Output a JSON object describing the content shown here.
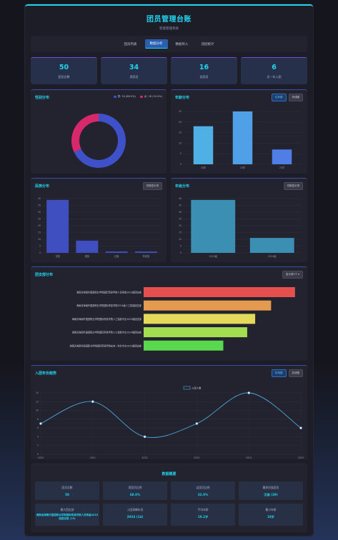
{
  "header": {
    "title": "团员管理台账",
    "subtitle": "智能管理系统"
  },
  "tabs": [
    {
      "label": "团员列表",
      "active": false
    },
    {
      "label": "数据分析",
      "active": true
    },
    {
      "label": "数据导入",
      "active": false
    },
    {
      "label": "违纪统计",
      "active": false
    }
  ],
  "stats": [
    {
      "value": "50",
      "label": "团员总数"
    },
    {
      "value": "34",
      "label": "男团员"
    },
    {
      "value": "16",
      "label": "女团员"
    },
    {
      "value": "6",
      "label": "近一年入团"
    }
  ],
  "gender_panel": {
    "title": "性别分布",
    "legend": [
      "男: 34 (68.0%)",
      "女: 16 (32.0%)"
    ]
  },
  "age_panel": {
    "title": "年龄分布",
    "buttons": [
      "柱状图",
      "折线图"
    ]
  },
  "ethnic_panel": {
    "title": "民族分布",
    "button": "切换显示排"
  },
  "grade_panel": {
    "title": "年级分布",
    "button": "切换显示排"
  },
  "branch_panel": {
    "title": "团支部分布",
    "select": "显示前5个"
  },
  "trend_panel": {
    "title": "入团年份趋势",
    "buttons": [
      "折线图",
      "柱状图"
    ],
    "legend": "入团人数"
  },
  "summary": {
    "title": "数据概要",
    "cells": [
      {
        "label": "团员总数",
        "value": "50"
      },
      {
        "label": "男团员比例",
        "value": "68.0%"
      },
      {
        "label": "女团员比例",
        "value": "32.0%"
      },
      {
        "label": "最多民族团员",
        "value": "汉族 (39)"
      },
      {
        "label": "最大团支部",
        "value": "海南省海南外国语职业学院国际贸易学院人员寿金2023级团支部 (19)"
      },
      {
        "label": "入团高峰年份",
        "value": "2024 (14)"
      },
      {
        "label": "平均年龄",
        "value": "19.2岁"
      },
      {
        "label": "最小年龄",
        "value": "18岁"
      }
    ]
  },
  "colors": {
    "accent": "#22d3ee",
    "male": "#3f51c9",
    "female": "#d6286a"
  },
  "chart_data": [
    {
      "type": "pie",
      "categories": [
        "男",
        "女"
      ],
      "values": [
        34,
        16
      ]
    },
    {
      "type": "bar",
      "categories": [
        "18岁",
        "19岁",
        "20岁"
      ],
      "values": [
        18,
        25,
        7
      ],
      "ylim": [
        0,
        25
      ],
      "yticks": [
        "0",
        "5",
        "10",
        "15",
        "20",
        "25"
      ]
    },
    {
      "type": "bar",
      "categories": [
        "汉族",
        "黎族",
        "壮族",
        "布依族"
      ],
      "values": [
        39,
        9,
        1,
        1
      ],
      "ylim": [
        0,
        40
      ],
      "yticks": [
        "0",
        "5",
        "10",
        "15",
        "20",
        "25",
        "30",
        "35",
        "40"
      ]
    },
    {
      "type": "bar",
      "categories": [
        "2023级",
        "2024级"
      ],
      "values": [
        39,
        11
      ],
      "ylim": [
        0,
        40
      ],
      "yticks": [
        "0",
        "5",
        "10",
        "15",
        "20",
        "25",
        "30",
        "35",
        "40"
      ]
    },
    {
      "type": "bar",
      "orientation": "horizontal",
      "categories": [
        "海南省海南外国语职业学院国际贸易学院人员寿金2023级团支部",
        "海南省海南外国语职业学院国际贸易学院2024级人工智能团支部",
        "海南省海南外国语职业学院国际贸易学院人工智能专业2023级团支部",
        "海南省海南外国语职业学院国际贸易学院人工智能专业2024级团支部",
        "海南省海南外国语职业学院国际贸易学院未来一年社专业2023级团支部"
      ],
      "values": [
        19,
        16,
        14,
        13,
        10
      ],
      "colors": [
        "#e5504f",
        "#e49a4f",
        "#e3d95a",
        "#a3de52",
        "#59d84d"
      ],
      "xlim": [
        0,
        20
      ]
    },
    {
      "type": "line",
      "x": [
        "2020",
        "2021",
        "2022",
        "2023",
        "2024",
        "2025"
      ],
      "series": [
        {
          "name": "入团人数",
          "values": [
            7,
            12,
            4,
            7,
            14,
            6
          ]
        }
      ],
      "ylim": [
        0,
        14
      ],
      "yticks": [
        "0",
        "2",
        "4",
        "6",
        "8",
        "10",
        "12",
        "14"
      ]
    }
  ]
}
